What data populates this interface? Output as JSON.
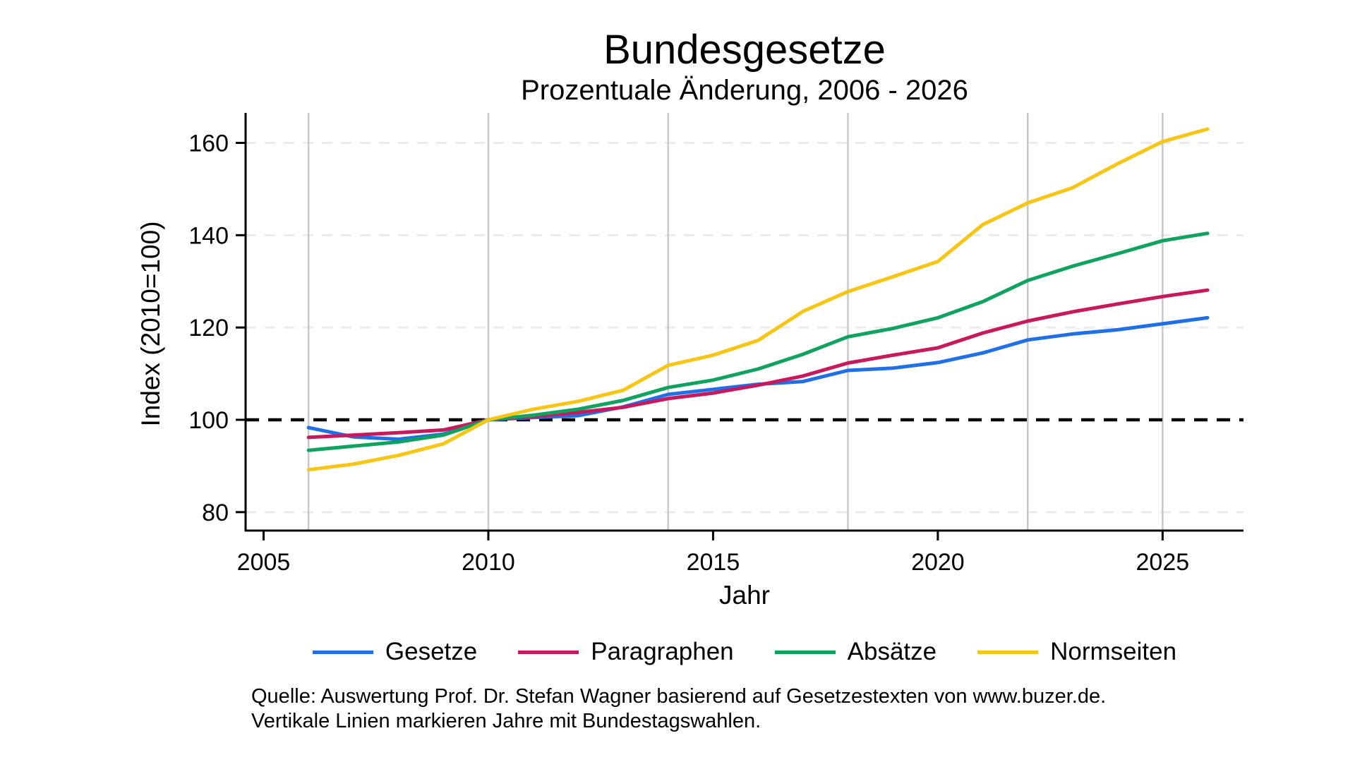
{
  "figure": {
    "title": "Bundesgesetze",
    "subtitle": "Prozentuale Änderung, 2006 - 2026",
    "source_line1": "Quelle: Auswertung Prof. Dr. Stefan Wagner basierend auf Gesetzestexten von www.buzer.de.",
    "source_line2": "Vertikale Linien markieren Jahre mit Bundestagswahlen."
  },
  "chart_data": {
    "type": "line",
    "title": "Bundesgesetze",
    "subtitle": "Prozentuale Änderung, 2006 - 2026",
    "xlabel": "Jahr",
    "ylabel": "Index (2010=100)",
    "x": [
      2006,
      2007,
      2008,
      2009,
      2010,
      2011,
      2012,
      2013,
      2014,
      2015,
      2016,
      2017,
      2018,
      2019,
      2020,
      2021,
      2022,
      2023,
      2024,
      2025,
      2026
    ],
    "series": [
      {
        "name": "Gesetze",
        "color": "#1e6fe8",
        "values": [
          98.3,
          96.3,
          95.8,
          96.9,
          100,
          100.5,
          100.9,
          102.8,
          105.5,
          106.6,
          107.7,
          108.3,
          110.7,
          111.2,
          112.4,
          114.5,
          117.3,
          118.6,
          119.5,
          120.8,
          122.1
        ]
      },
      {
        "name": "Paragraphen",
        "color": "#c9185b",
        "values": [
          96.2,
          96.7,
          97.2,
          97.8,
          100,
          100.7,
          101.6,
          102.7,
          104.6,
          105.8,
          107.5,
          109.5,
          112.3,
          114.0,
          115.6,
          118.8,
          121.4,
          123.4,
          125.1,
          126.7,
          128.1
        ]
      },
      {
        "name": "Absätze",
        "color": "#0ea35f",
        "values": [
          93.4,
          94.3,
          95.2,
          96.7,
          100,
          101.0,
          102.3,
          104.2,
          107.0,
          108.6,
          111.0,
          114.2,
          118.0,
          119.8,
          122.1,
          125.6,
          130.2,
          133.3,
          136.0,
          138.8,
          140.4
        ]
      },
      {
        "name": "Normseiten",
        "color": "#f9c513",
        "values": [
          89.2,
          90.4,
          92.3,
          94.8,
          100,
          102.3,
          104.0,
          106.4,
          111.8,
          114.0,
          117.2,
          123.5,
          127.8,
          131.0,
          134.3,
          142.3,
          147.0,
          150.3,
          155.5,
          160.3,
          163.0
        ]
      }
    ],
    "x_ticks": [
      2005,
      2010,
      2015,
      2020,
      2025
    ],
    "y_ticks": [
      80,
      100,
      120,
      140,
      160
    ],
    "xlim": [
      2004.6,
      2026.8
    ],
    "ylim": [
      76,
      166.5
    ],
    "reference_line_y": 100,
    "vertical_lines": [
      2006,
      2010,
      2014,
      2018,
      2022,
      2025
    ],
    "grid": "horizontal-dashed",
    "legend_position": "bottom"
  },
  "colors": {
    "axis": "#000000",
    "reference_line": "#000000",
    "grid_line": "#ebebeb",
    "election_line": "#c8c8c8",
    "background": "#ffffff",
    "text": "#000000"
  }
}
